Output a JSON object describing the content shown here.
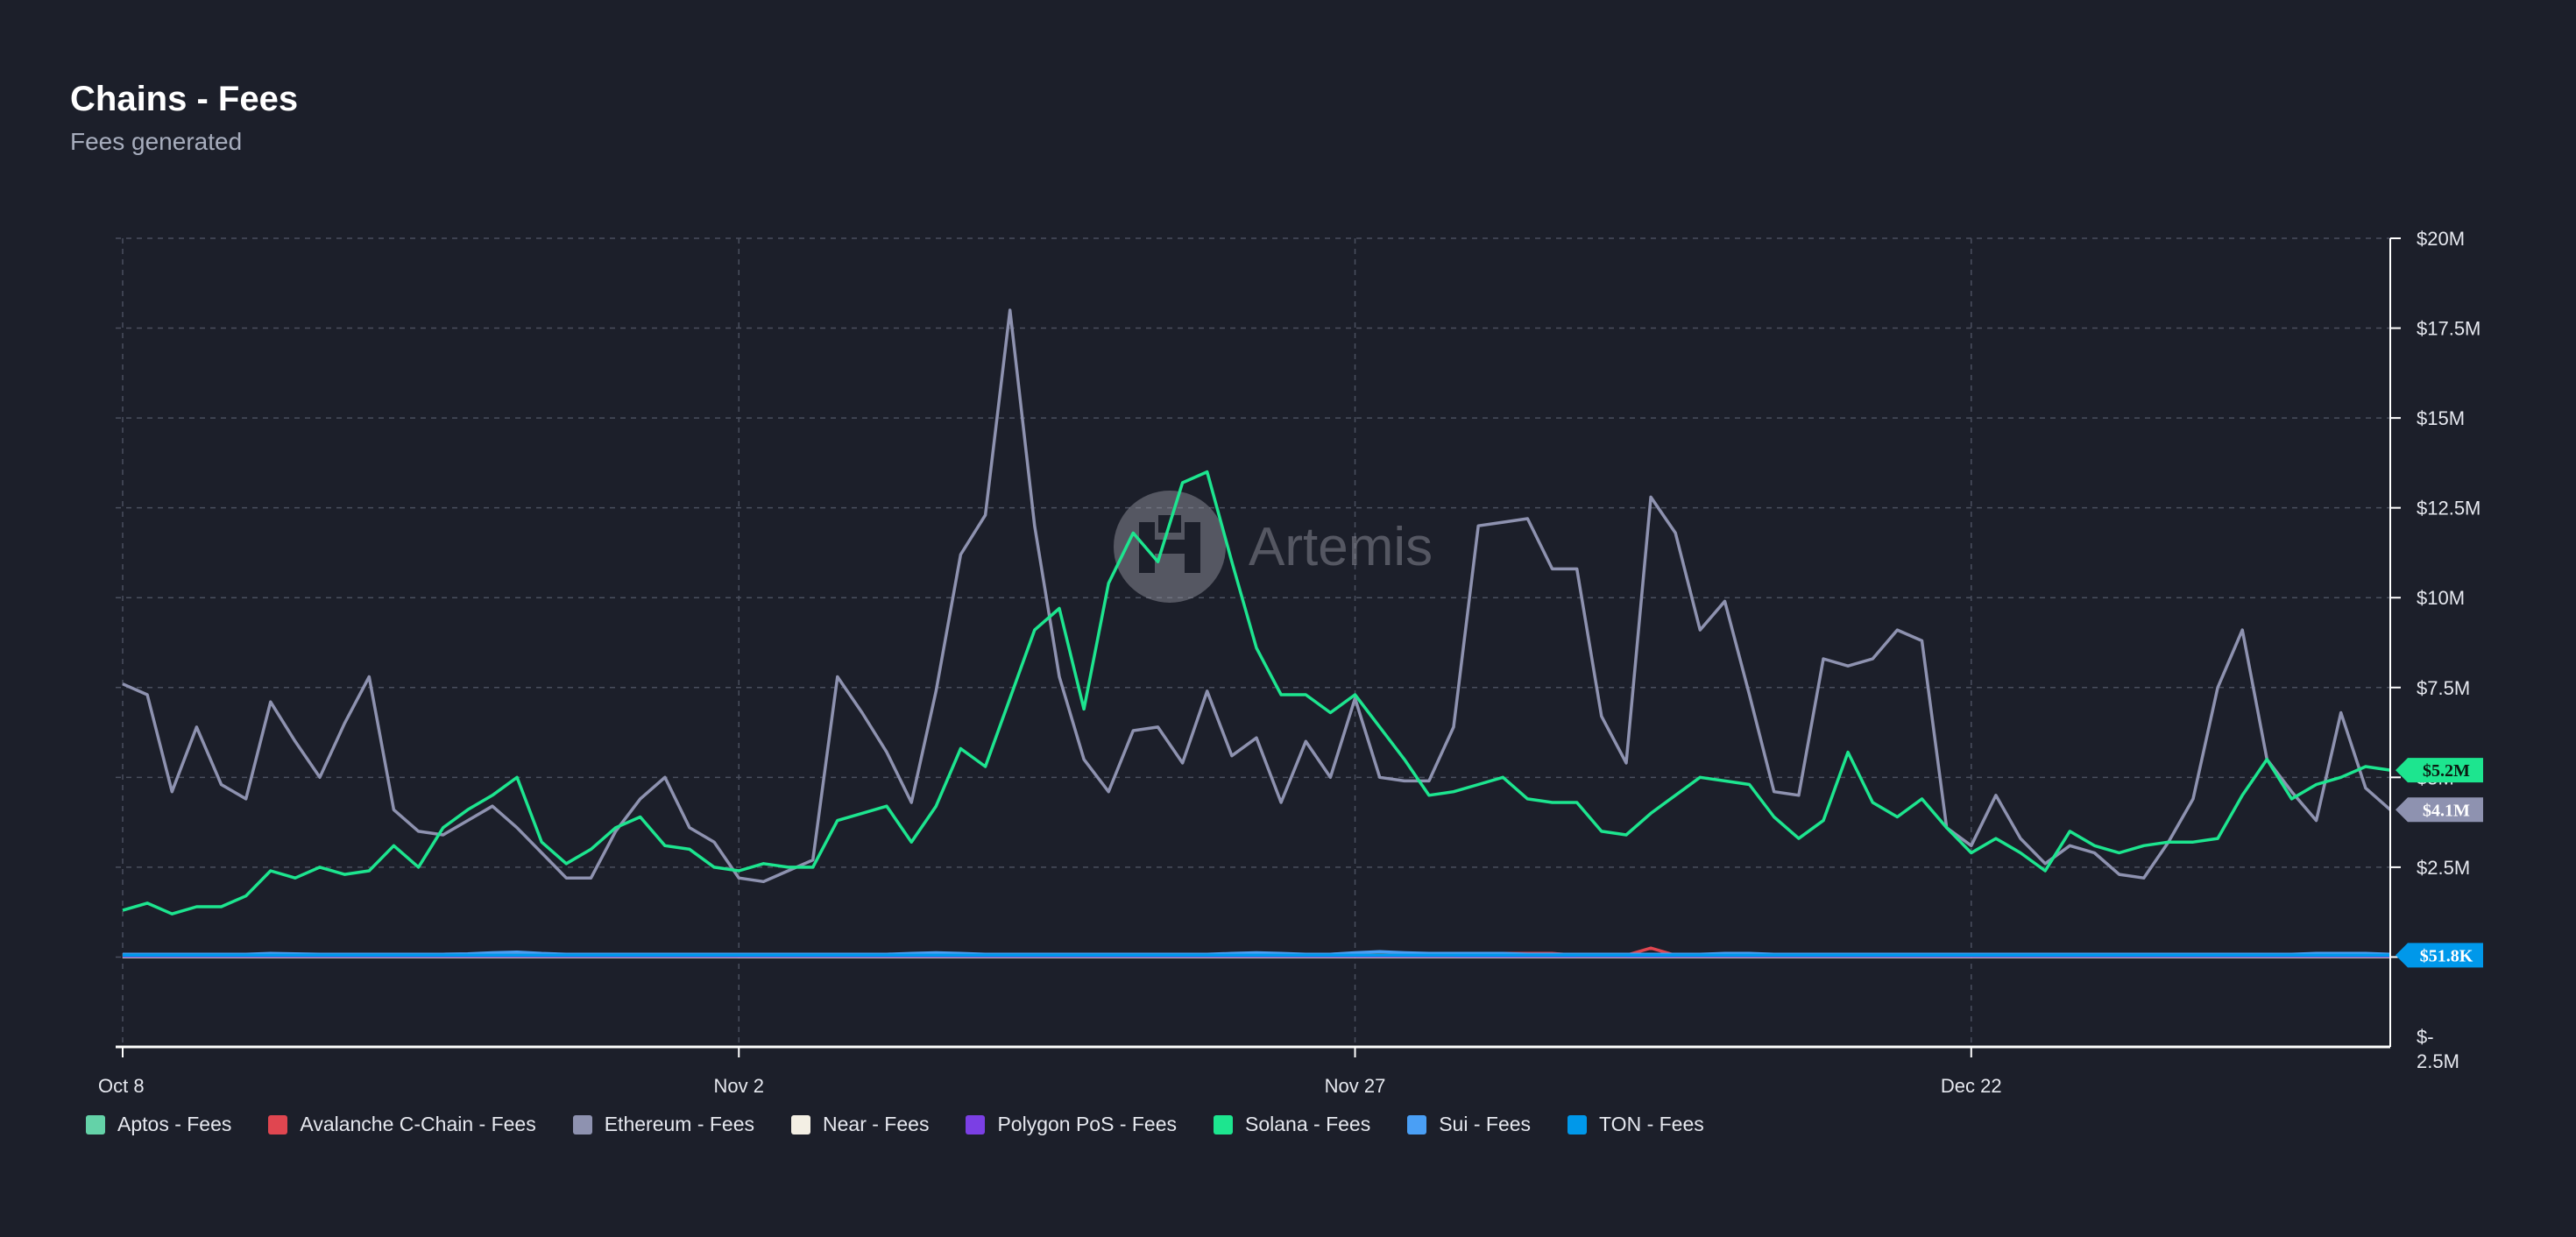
{
  "header": {
    "title": "Chains - Fees",
    "subtitle": "Fees generated"
  },
  "watermark": {
    "text": "Artemis"
  },
  "colors": {
    "background": "#1c1f2a",
    "grid": "#4a4f5e",
    "axis": "#ffffff",
    "text": "#e6e8ef"
  },
  "chart_data": {
    "type": "line",
    "title": "Chains - Fees",
    "subtitle": "Fees generated",
    "x_tick_labels": [
      "Oct 8",
      "Nov 2",
      "Nov 27",
      "Dec 22"
    ],
    "y_tick_labels": [
      "$20M",
      "$17.5M",
      "$15M",
      "$12.5M",
      "$10M",
      "$7.5M",
      "$5M",
      "$2.5M",
      "$-"
    ],
    "y_bottom_label": "$- 2.5M",
    "y_axis_position": "right",
    "ylim": [
      -2500000,
      20000000
    ],
    "grid": true,
    "legend_position": "bottom",
    "x_start": "Oct 8",
    "x_step_days": 1,
    "series": [
      {
        "name": "Ethereum - Fees",
        "color": "#8e92b0",
        "end_label": "$4.1M",
        "values": [
          7.6,
          7.3,
          4.6,
          6.4,
          4.8,
          4.4,
          7.1,
          6.0,
          5.0,
          6.5,
          7.8,
          4.1,
          3.5,
          3.4,
          3.8,
          4.2,
          3.6,
          2.9,
          2.2,
          2.2,
          3.5,
          4.4,
          5.0,
          3.6,
          3.2,
          2.2,
          2.1,
          2.4,
          2.7,
          7.8,
          6.8,
          5.7,
          4.3,
          7.4,
          11.2,
          12.3,
          18.0,
          12.0,
          7.8,
          5.5,
          4.6,
          6.3,
          6.4,
          5.4,
          7.4,
          5.6,
          6.1,
          4.3,
          6.0,
          5.0,
          7.2,
          5.0,
          4.9,
          4.9,
          6.4,
          12.0,
          12.1,
          12.2,
          10.8,
          10.8,
          6.7,
          5.4,
          12.8,
          11.8,
          9.1,
          9.9,
          7.3,
          4.6,
          4.5,
          8.3,
          8.1,
          8.3,
          9.1,
          8.8,
          3.6,
          3.1,
          4.5,
          3.3,
          2.6,
          3.1,
          2.9,
          2.3,
          2.2,
          3.2,
          4.4,
          7.5,
          9.1,
          5.5,
          4.6,
          3.8,
          6.8,
          4.7,
          4.1
        ]
      },
      {
        "name": "Solana - Fees",
        "color": "#1de58f",
        "end_label": "$5.2M",
        "values": [
          1.3,
          1.5,
          1.2,
          1.4,
          1.4,
          1.7,
          2.4,
          2.2,
          2.5,
          2.3,
          2.4,
          3.1,
          2.5,
          3.6,
          4.1,
          4.5,
          5.0,
          3.2,
          2.6,
          3.0,
          3.6,
          3.9,
          3.1,
          3.0,
          2.5,
          2.4,
          2.6,
          2.5,
          2.5,
          3.8,
          4.0,
          4.2,
          3.2,
          4.2,
          5.8,
          5.3,
          7.2,
          9.1,
          9.7,
          6.9,
          10.4,
          11.8,
          11.0,
          13.2,
          13.5,
          11.0,
          8.6,
          7.3,
          7.3,
          6.8,
          7.3,
          6.4,
          5.5,
          4.5,
          4.6,
          4.8,
          5.0,
          4.4,
          4.3,
          4.3,
          3.5,
          3.4,
          4.0,
          4.5,
          5.0,
          4.9,
          4.8,
          3.9,
          3.3,
          3.8,
          5.7,
          4.3,
          3.9,
          4.4,
          3.6,
          2.9,
          3.3,
          2.9,
          2.4,
          3.5,
          3.1,
          2.9,
          3.1,
          3.2,
          3.2,
          3.3,
          4.5,
          5.5,
          4.4,
          4.8,
          5.0,
          5.3,
          5.2
        ]
      },
      {
        "name": "Aptos - Fees",
        "color": "#64d2a8",
        "values": [
          0.06,
          0.06,
          0.06,
          0.06,
          0.06,
          0.06,
          0.06,
          0.06,
          0.06,
          0.06,
          0.06,
          0.06,
          0.06,
          0.06,
          0.06,
          0.06,
          0.06,
          0.06,
          0.06,
          0.06,
          0.06,
          0.06,
          0.06,
          0.06,
          0.06,
          0.06,
          0.06,
          0.06,
          0.06,
          0.06,
          0.06,
          0.06,
          0.06,
          0.06,
          0.06,
          0.06,
          0.06,
          0.06,
          0.06,
          0.06,
          0.06,
          0.06,
          0.06,
          0.06,
          0.06,
          0.06,
          0.06,
          0.06,
          0.06,
          0.06,
          0.06,
          0.06,
          0.06,
          0.06,
          0.06,
          0.06,
          0.06,
          0.06,
          0.06,
          0.06,
          0.06,
          0.06,
          0.06,
          0.06,
          0.06,
          0.06,
          0.06,
          0.06,
          0.06,
          0.06,
          0.06,
          0.06,
          0.06,
          0.06,
          0.06,
          0.06,
          0.06,
          0.06,
          0.06,
          0.06,
          0.06,
          0.06,
          0.06,
          0.06,
          0.06,
          0.06,
          0.06,
          0.06,
          0.06,
          0.06,
          0.06,
          0.06,
          0.06
        ]
      },
      {
        "name": "Avalanche C-Chain - Fees",
        "color": "#e04650",
        "values": [
          0.05,
          0.05,
          0.05,
          0.05,
          0.05,
          0.05,
          0.05,
          0.05,
          0.05,
          0.05,
          0.05,
          0.05,
          0.05,
          0.05,
          0.05,
          0.05,
          0.05,
          0.05,
          0.05,
          0.05,
          0.05,
          0.05,
          0.05,
          0.05,
          0.05,
          0.05,
          0.05,
          0.05,
          0.05,
          0.05,
          0.05,
          0.05,
          0.05,
          0.05,
          0.05,
          0.05,
          0.05,
          0.05,
          0.05,
          0.05,
          0.05,
          0.05,
          0.05,
          0.05,
          0.05,
          0.05,
          0.05,
          0.05,
          0.05,
          0.05,
          0.05,
          0.05,
          0.05,
          0.05,
          0.05,
          0.1,
          0.1,
          0.1,
          0.1,
          0.05,
          0.05,
          0.05,
          0.25,
          0.05,
          0.05,
          0.05,
          0.05,
          0.05,
          0.05,
          0.05,
          0.05,
          0.05,
          0.05,
          0.05,
          0.05,
          0.05,
          0.05,
          0.05,
          0.05,
          0.05,
          0.05,
          0.05,
          0.05,
          0.05,
          0.05,
          0.05,
          0.05,
          0.05,
          0.05,
          0.05,
          0.05,
          0.05,
          0.05
        ]
      },
      {
        "name": "Near - Fees",
        "color": "#f3efe4",
        "values": [
          0.01,
          0.01,
          0.01,
          0.01,
          0.01,
          0.01,
          0.01,
          0.01,
          0.01,
          0.01,
          0.01,
          0.01,
          0.01,
          0.01,
          0.01,
          0.01,
          0.01,
          0.01,
          0.01,
          0.01,
          0.01,
          0.01,
          0.01,
          0.01,
          0.01,
          0.01,
          0.01,
          0.01,
          0.01,
          0.01,
          0.01,
          0.01,
          0.01,
          0.01,
          0.01,
          0.01,
          0.01,
          0.01,
          0.01,
          0.01,
          0.01,
          0.01,
          0.01,
          0.01,
          0.01,
          0.01,
          0.01,
          0.01,
          0.01,
          0.01,
          0.01,
          0.01,
          0.01,
          0.01,
          0.01,
          0.01,
          0.01,
          0.01,
          0.01,
          0.01,
          0.01,
          0.01,
          0.01,
          0.01,
          0.01,
          0.01,
          0.01,
          0.01,
          0.01,
          0.01,
          0.01,
          0.01,
          0.01,
          0.01,
          0.01,
          0.01,
          0.01,
          0.01,
          0.01,
          0.01,
          0.01,
          0.01,
          0.01,
          0.01,
          0.01,
          0.01,
          0.01,
          0.01,
          0.01,
          0.01,
          0.01,
          0.01,
          0.01
        ]
      },
      {
        "name": "Polygon PoS - Fees",
        "color": "#7b3fe4",
        "values": [
          0.03,
          0.03,
          0.03,
          0.03,
          0.03,
          0.03,
          0.03,
          0.03,
          0.03,
          0.03,
          0.03,
          0.03,
          0.03,
          0.03,
          0.03,
          0.03,
          0.03,
          0.03,
          0.03,
          0.03,
          0.03,
          0.03,
          0.03,
          0.03,
          0.03,
          0.03,
          0.03,
          0.03,
          0.03,
          0.03,
          0.03,
          0.03,
          0.03,
          0.03,
          0.03,
          0.03,
          0.03,
          0.03,
          0.03,
          0.03,
          0.03,
          0.03,
          0.03,
          0.03,
          0.03,
          0.03,
          0.03,
          0.03,
          0.03,
          0.03,
          0.03,
          0.03,
          0.03,
          0.03,
          0.03,
          0.03,
          0.03,
          0.03,
          0.03,
          0.03,
          0.03,
          0.03,
          0.03,
          0.03,
          0.03,
          0.03,
          0.03,
          0.03,
          0.03,
          0.03,
          0.03,
          0.03,
          0.03,
          0.03,
          0.03,
          0.03,
          0.03,
          0.03,
          0.03,
          0.03,
          0.03,
          0.03,
          0.03,
          0.03,
          0.03,
          0.03,
          0.03,
          0.03,
          0.03,
          0.03,
          0.03,
          0.03,
          0.03
        ]
      },
      {
        "name": "Sui - Fees",
        "color": "#4a9ff5",
        "values": [
          0.08,
          0.08,
          0.08,
          0.08,
          0.08,
          0.08,
          0.1,
          0.09,
          0.08,
          0.08,
          0.08,
          0.08,
          0.08,
          0.08,
          0.09,
          0.12,
          0.14,
          0.1,
          0.08,
          0.08,
          0.08,
          0.08,
          0.08,
          0.08,
          0.08,
          0.08,
          0.08,
          0.08,
          0.08,
          0.08,
          0.08,
          0.08,
          0.1,
          0.12,
          0.1,
          0.08,
          0.08,
          0.08,
          0.08,
          0.08,
          0.08,
          0.08,
          0.08,
          0.08,
          0.08,
          0.1,
          0.12,
          0.1,
          0.08,
          0.08,
          0.12,
          0.15,
          0.12,
          0.1,
          0.1,
          0.1,
          0.1,
          0.08,
          0.08,
          0.08,
          0.08,
          0.08,
          0.08,
          0.08,
          0.08,
          0.1,
          0.1,
          0.08,
          0.08,
          0.08,
          0.08,
          0.08,
          0.08,
          0.08,
          0.08,
          0.08,
          0.08,
          0.08,
          0.08,
          0.08,
          0.08,
          0.08,
          0.08,
          0.08,
          0.08,
          0.08,
          0.08,
          0.08,
          0.08,
          0.1,
          0.1,
          0.1,
          0.08
        ]
      },
      {
        "name": "TON - Fees",
        "color": "#0098ea",
        "end_label": "$51.8K",
        "values": [
          0.05,
          0.05,
          0.05,
          0.05,
          0.05,
          0.05,
          0.05,
          0.05,
          0.05,
          0.05,
          0.05,
          0.05,
          0.05,
          0.05,
          0.05,
          0.05,
          0.05,
          0.05,
          0.05,
          0.05,
          0.05,
          0.05,
          0.05,
          0.05,
          0.05,
          0.05,
          0.05,
          0.05,
          0.05,
          0.05,
          0.05,
          0.05,
          0.05,
          0.05,
          0.05,
          0.05,
          0.05,
          0.05,
          0.05,
          0.05,
          0.05,
          0.05,
          0.05,
          0.05,
          0.05,
          0.05,
          0.05,
          0.05,
          0.05,
          0.05,
          0.05,
          0.05,
          0.05,
          0.05,
          0.05,
          0.05,
          0.05,
          0.05,
          0.05,
          0.05,
          0.05,
          0.05,
          0.05,
          0.05,
          0.05,
          0.05,
          0.05,
          0.05,
          0.05,
          0.05,
          0.05,
          0.05,
          0.05,
          0.05,
          0.05,
          0.05,
          0.05,
          0.05,
          0.05,
          0.05,
          0.05,
          0.05,
          0.05,
          0.05,
          0.05,
          0.05,
          0.05,
          0.05,
          0.05,
          0.05,
          0.05,
          0.05,
          0.05
        ]
      }
    ]
  }
}
